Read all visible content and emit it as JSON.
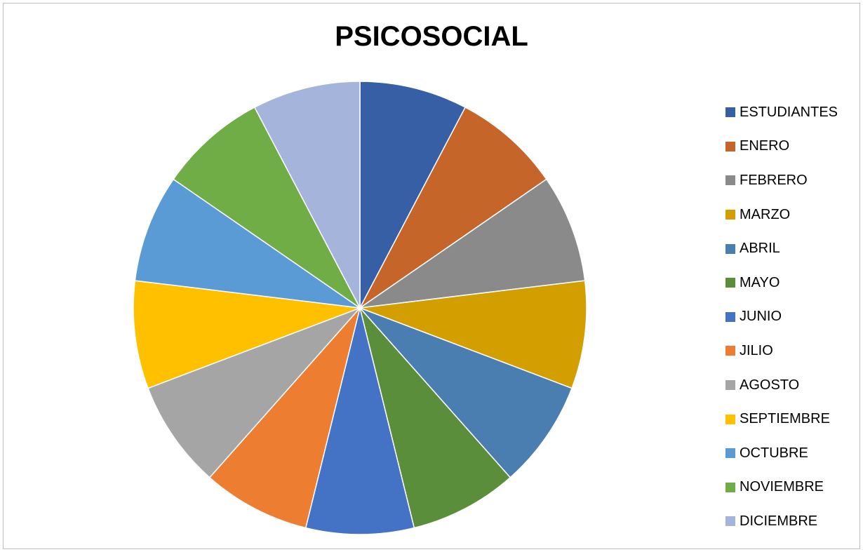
{
  "chart_data": {
    "type": "pie",
    "title": "PSICOSOCIAL",
    "legend_position": "right",
    "categories": [
      "ESTUDIANTES",
      "ENERO",
      "FEBRERO",
      "MARZO",
      "ABRIL",
      "MAYO",
      "JUNIO",
      "JILIO",
      "AGOSTO",
      "SEPTIEMBRE",
      "OCTUBRE",
      "NOVIEMBRE",
      "DICIEMBRE"
    ],
    "values": [
      1,
      1,
      1,
      1,
      1,
      1,
      1,
      1,
      1,
      1,
      1,
      1,
      1
    ],
    "colors": [
      "#365fa5",
      "#c5652a",
      "#8a8a8a",
      "#d39e00",
      "#4a7eb0",
      "#5b8e3a",
      "#4472c4",
      "#ed7d31",
      "#a5a5a5",
      "#ffc000",
      "#5b9bd5",
      "#70ad47",
      "#a5b4da"
    ]
  }
}
